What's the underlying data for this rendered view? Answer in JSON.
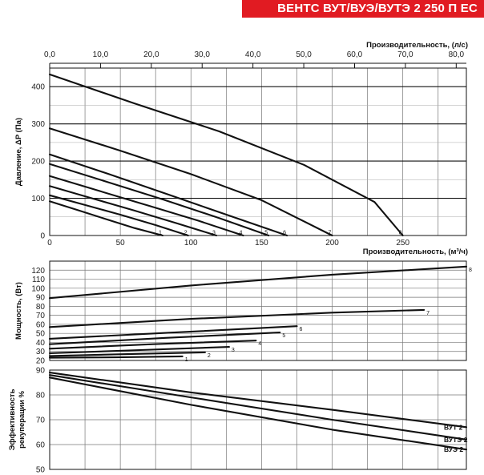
{
  "banner": {
    "title": "ВЕНТС ВУТ/ВУЭ/ВУТЭ 2 250 П ЕС",
    "color": "#e11b22"
  },
  "chart_data": [
    {
      "type": "line",
      "ylabel": "Давление, ΔP (Па)",
      "xlabel": "Производительность, (м³/ч)",
      "x2label": "Производительность, (л/с)",
      "xlim": [
        0,
        295
      ],
      "ylim": [
        0,
        450
      ],
      "x_ticks": [
        0,
        50,
        100,
        150,
        200,
        250
      ],
      "x2lim": [
        0,
        82
      ],
      "x2_ticks": [
        "0,0",
        "10,0",
        "20,0",
        "30,0",
        "40,0",
        "50,0",
        "60,0",
        "70,0",
        "80,0"
      ],
      "y_ticks": [
        0,
        100,
        200,
        300,
        400
      ],
      "grid": true,
      "series": [
        {
          "name": "1",
          "x": [
            0,
            20,
            40,
            60,
            80
          ],
          "y": [
            92,
            68,
            44,
            20,
            0
          ]
        },
        {
          "name": "2",
          "x": [
            0,
            25,
            50,
            75,
            98
          ],
          "y": [
            108,
            82,
            56,
            28,
            0
          ]
        },
        {
          "name": "3",
          "x": [
            0,
            30,
            60,
            90,
            118
          ],
          "y": [
            133,
            100,
            67,
            33,
            0
          ]
        },
        {
          "name": "4",
          "x": [
            0,
            35,
            70,
            105,
            137
          ],
          "y": [
            160,
            120,
            80,
            40,
            0
          ]
        },
        {
          "name": "5",
          "x": [
            0,
            40,
            80,
            120,
            155
          ],
          "y": [
            192,
            145,
            97,
            47,
            0
          ]
        },
        {
          "name": "6",
          "x": [
            0,
            42,
            84,
            126,
            168
          ],
          "y": [
            218,
            165,
            110,
            55,
            0
          ]
        },
        {
          "name": "7",
          "x": [
            0,
            50,
            100,
            150,
            200
          ],
          "y": [
            288,
            228,
            165,
            95,
            0
          ]
        },
        {
          "name": "8",
          "x": [
            0,
            60,
            120,
            180,
            230,
            250
          ],
          "y": [
            433,
            355,
            280,
            190,
            90,
            0
          ]
        }
      ]
    },
    {
      "type": "line",
      "ylabel": "Мощность, (Вт)",
      "xlim": [
        0,
        295
      ],
      "ylim": [
        20,
        130
      ],
      "y_ticks": [
        20,
        30,
        40,
        50,
        60,
        70,
        80,
        90,
        100,
        110,
        120
      ],
      "grid": true,
      "series": [
        {
          "name": "1",
          "x": [
            0,
            47,
            94
          ],
          "y": [
            23,
            23.5,
            24.5
          ]
        },
        {
          "name": "2",
          "x": [
            0,
            55,
            110
          ],
          "y": [
            25,
            27,
            29
          ]
        },
        {
          "name": "3",
          "x": [
            0,
            64,
            127
          ],
          "y": [
            28,
            31.5,
            35
          ]
        },
        {
          "name": "4",
          "x": [
            0,
            73,
            146
          ],
          "y": [
            33,
            38,
            42
          ]
        },
        {
          "name": "5",
          "x": [
            0,
            82,
            163
          ],
          "y": [
            38,
            45,
            51
          ]
        },
        {
          "name": "6",
          "x": [
            0,
            88,
            175
          ],
          "y": [
            44,
            51,
            58
          ]
        },
        {
          "name": "7",
          "x": [
            0,
            100,
            200,
            265
          ],
          "y": [
            57,
            66,
            73,
            76
          ]
        },
        {
          "name": "8",
          "x": [
            0,
            100,
            200,
            295
          ],
          "y": [
            89,
            103,
            115,
            124
          ]
        }
      ]
    },
    {
      "type": "line",
      "ylabel": "Эффективность рекуперации %",
      "xlim": [
        0,
        295
      ],
      "ylim": [
        50,
        90
      ],
      "y_ticks": [
        50,
        60,
        70,
        80,
        90
      ],
      "grid": true,
      "series": [
        {
          "name": "ВУТ 2",
          "x": [
            0,
            100,
            200,
            295
          ],
          "y": [
            89,
            81,
            74,
            67
          ]
        },
        {
          "name": "ВУТЭ 2",
          "x": [
            0,
            100,
            200,
            295
          ],
          "y": [
            88,
            79,
            70,
            62
          ]
        },
        {
          "name": "ВУЭ 2",
          "x": [
            0,
            100,
            200,
            295
          ],
          "y": [
            87,
            76,
            66,
            58
          ]
        }
      ]
    }
  ]
}
